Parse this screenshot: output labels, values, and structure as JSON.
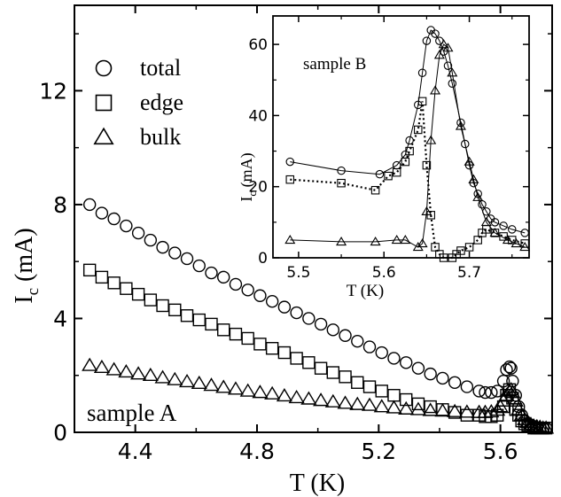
{
  "chart_data": [
    {
      "type": "scatter",
      "annotation": "sample A",
      "xlabel": "T (K)",
      "ylabel": "I",
      "ylabel_sub": "c",
      "ylabel_unit": " (mA)",
      "xlim": [
        4.2,
        5.77
      ],
      "ylim": [
        0,
        15
      ],
      "xticks": [
        4.4,
        4.8,
        5.2,
        5.6
      ],
      "yticks": [
        0,
        4,
        8,
        12
      ],
      "legend_position": "top-left",
      "grid": false,
      "series": [
        {
          "name": "total",
          "marker": "circle",
          "x": [
            4.25,
            4.29,
            4.33,
            4.37,
            4.41,
            4.45,
            4.49,
            4.53,
            4.57,
            4.61,
            4.65,
            4.69,
            4.73,
            4.77,
            4.81,
            4.85,
            4.89,
            4.93,
            4.97,
            5.01,
            5.05,
            5.09,
            5.13,
            5.17,
            5.21,
            5.25,
            5.29,
            5.33,
            5.37,
            5.41,
            5.45,
            5.49,
            5.53,
            5.55,
            5.57,
            5.59,
            5.61,
            5.62,
            5.63,
            5.635,
            5.64,
            5.65,
            5.66,
            5.67,
            5.68,
            5.69,
            5.7,
            5.71,
            5.72,
            5.73,
            5.74,
            5.75
          ],
          "y": [
            8.0,
            7.7,
            7.5,
            7.25,
            7.0,
            6.75,
            6.5,
            6.3,
            6.1,
            5.85,
            5.6,
            5.45,
            5.2,
            5.0,
            4.8,
            4.6,
            4.4,
            4.2,
            4.0,
            3.8,
            3.6,
            3.4,
            3.2,
            3.0,
            2.8,
            2.6,
            2.45,
            2.25,
            2.05,
            1.9,
            1.75,
            1.6,
            1.45,
            1.4,
            1.4,
            1.45,
            1.8,
            2.2,
            2.3,
            2.25,
            1.8,
            1.3,
            0.9,
            0.6,
            0.4,
            0.3,
            0.25,
            0.2,
            0.15,
            0.15,
            0.15,
            0.15
          ]
        },
        {
          "name": "edge",
          "marker": "square",
          "x": [
            4.25,
            4.29,
            4.33,
            4.37,
            4.41,
            4.45,
            4.49,
            4.53,
            4.57,
            4.61,
            4.65,
            4.69,
            4.73,
            4.77,
            4.81,
            4.85,
            4.89,
            4.93,
            4.97,
            5.01,
            5.05,
            5.09,
            5.13,
            5.17,
            5.21,
            5.25,
            5.29,
            5.33,
            5.37,
            5.41,
            5.45,
            5.49,
            5.53,
            5.55,
            5.57,
            5.59,
            5.61,
            5.62,
            5.63,
            5.64,
            5.65,
            5.66,
            5.67,
            5.68,
            5.69,
            5.7,
            5.71,
            5.72,
            5.73,
            5.74,
            5.75
          ],
          "y": [
            5.7,
            5.45,
            5.25,
            5.05,
            4.85,
            4.65,
            4.45,
            4.3,
            4.1,
            3.95,
            3.8,
            3.6,
            3.45,
            3.3,
            3.1,
            2.95,
            2.8,
            2.6,
            2.45,
            2.25,
            2.1,
            1.95,
            1.75,
            1.6,
            1.45,
            1.3,
            1.15,
            1.0,
            0.9,
            0.8,
            0.7,
            0.6,
            0.6,
            0.55,
            0.55,
            0.6,
            0.9,
            1.3,
            1.5,
            1.2,
            0.8,
            0.6,
            0.4,
            0.3,
            0.25,
            0.2,
            0.15,
            0.15,
            0.15,
            0.15,
            0.15
          ]
        },
        {
          "name": "bulk",
          "marker": "triangle",
          "x": [
            4.25,
            4.29,
            4.33,
            4.37,
            4.41,
            4.45,
            4.49,
            4.53,
            4.57,
            4.61,
            4.65,
            4.69,
            4.73,
            4.77,
            4.81,
            4.85,
            4.89,
            4.93,
            4.97,
            5.01,
            5.05,
            5.09,
            5.13,
            5.17,
            5.21,
            5.25,
            5.29,
            5.33,
            5.37,
            5.41,
            5.45,
            5.49,
            5.53,
            5.55,
            5.57,
            5.59,
            5.6,
            5.61,
            5.62,
            5.63,
            5.635,
            5.64,
            5.65,
            5.66,
            5.67,
            5.68,
            5.69,
            5.7,
            5.71,
            5.72,
            5.73,
            5.74,
            5.75
          ],
          "y": [
            2.35,
            2.28,
            2.2,
            2.12,
            2.05,
            2.0,
            1.92,
            1.85,
            1.78,
            1.72,
            1.65,
            1.58,
            1.52,
            1.45,
            1.4,
            1.35,
            1.28,
            1.22,
            1.17,
            1.12,
            1.07,
            1.02,
            0.98,
            0.95,
            0.9,
            0.86,
            0.82,
            0.8,
            0.77,
            0.75,
            0.73,
            0.71,
            0.7,
            0.7,
            0.72,
            0.78,
            0.9,
            1.1,
            1.3,
            1.45,
            1.5,
            1.4,
            1.1,
            0.8,
            0.6,
            0.45,
            0.35,
            0.28,
            0.22,
            0.2,
            0.18,
            0.15,
            0.15
          ]
        }
      ]
    },
    {
      "type": "line",
      "annotation": "sample B",
      "xlabel": "T (K)",
      "ylabel": "I",
      "ylabel_sub": "c",
      "ylabel_unit": " (mA)",
      "xlim": [
        5.47,
        5.77
      ],
      "ylim": [
        0,
        68
      ],
      "xticks": [
        5.5,
        5.6,
        5.7
      ],
      "yticks": [
        0,
        20,
        40,
        60
      ],
      "grid": false,
      "series": [
        {
          "name": "total",
          "marker": "circle",
          "line": "solid",
          "x": [
            5.49,
            5.55,
            5.595,
            5.615,
            5.625,
            5.63,
            5.64,
            5.645,
            5.65,
            5.655,
            5.66,
            5.665,
            5.67,
            5.675,
            5.68,
            5.69,
            5.695,
            5.7,
            5.705,
            5.71,
            5.715,
            5.72,
            5.725,
            5.73,
            5.74,
            5.75,
            5.765
          ],
          "y": [
            27,
            24.5,
            23.5,
            26,
            29,
            33,
            43,
            52,
            61,
            64,
            63,
            61,
            58,
            54,
            49,
            38,
            32,
            26,
            21,
            18,
            15,
            13,
            11,
            10,
            9,
            8,
            7
          ]
        },
        {
          "name": "edge",
          "marker": "square",
          "line": "dotted",
          "x": [
            5.49,
            5.55,
            5.59,
            5.605,
            5.615,
            5.625,
            5.63,
            5.64,
            5.645,
            5.65,
            5.655,
            5.66,
            5.665,
            5.67,
            5.68,
            5.685,
            5.69,
            5.7,
            5.71,
            5.715,
            5.72,
            5.73,
            5.74,
            5.75,
            5.765
          ],
          "y": [
            22,
            21,
            19,
            23,
            24,
            27,
            30,
            36,
            44,
            26,
            12,
            3,
            1,
            0,
            0,
            1,
            2,
            3,
            5,
            7,
            8,
            7,
            6,
            5,
            4
          ]
        },
        {
          "name": "bulk",
          "marker": "triangle",
          "line": "solid",
          "x": [
            5.49,
            5.55,
            5.59,
            5.615,
            5.625,
            5.64,
            5.645,
            5.65,
            5.655,
            5.66,
            5.665,
            5.67,
            5.675,
            5.68,
            5.69,
            5.7,
            5.705,
            5.71,
            5.72,
            5.73,
            5.745,
            5.755,
            5.765
          ],
          "y": [
            5,
            4.5,
            4.5,
            5,
            5,
            3,
            4,
            13,
            33,
            47,
            57,
            60,
            59,
            52,
            37,
            27,
            22,
            17,
            10,
            7,
            5,
            4,
            3
          ]
        }
      ]
    }
  ]
}
